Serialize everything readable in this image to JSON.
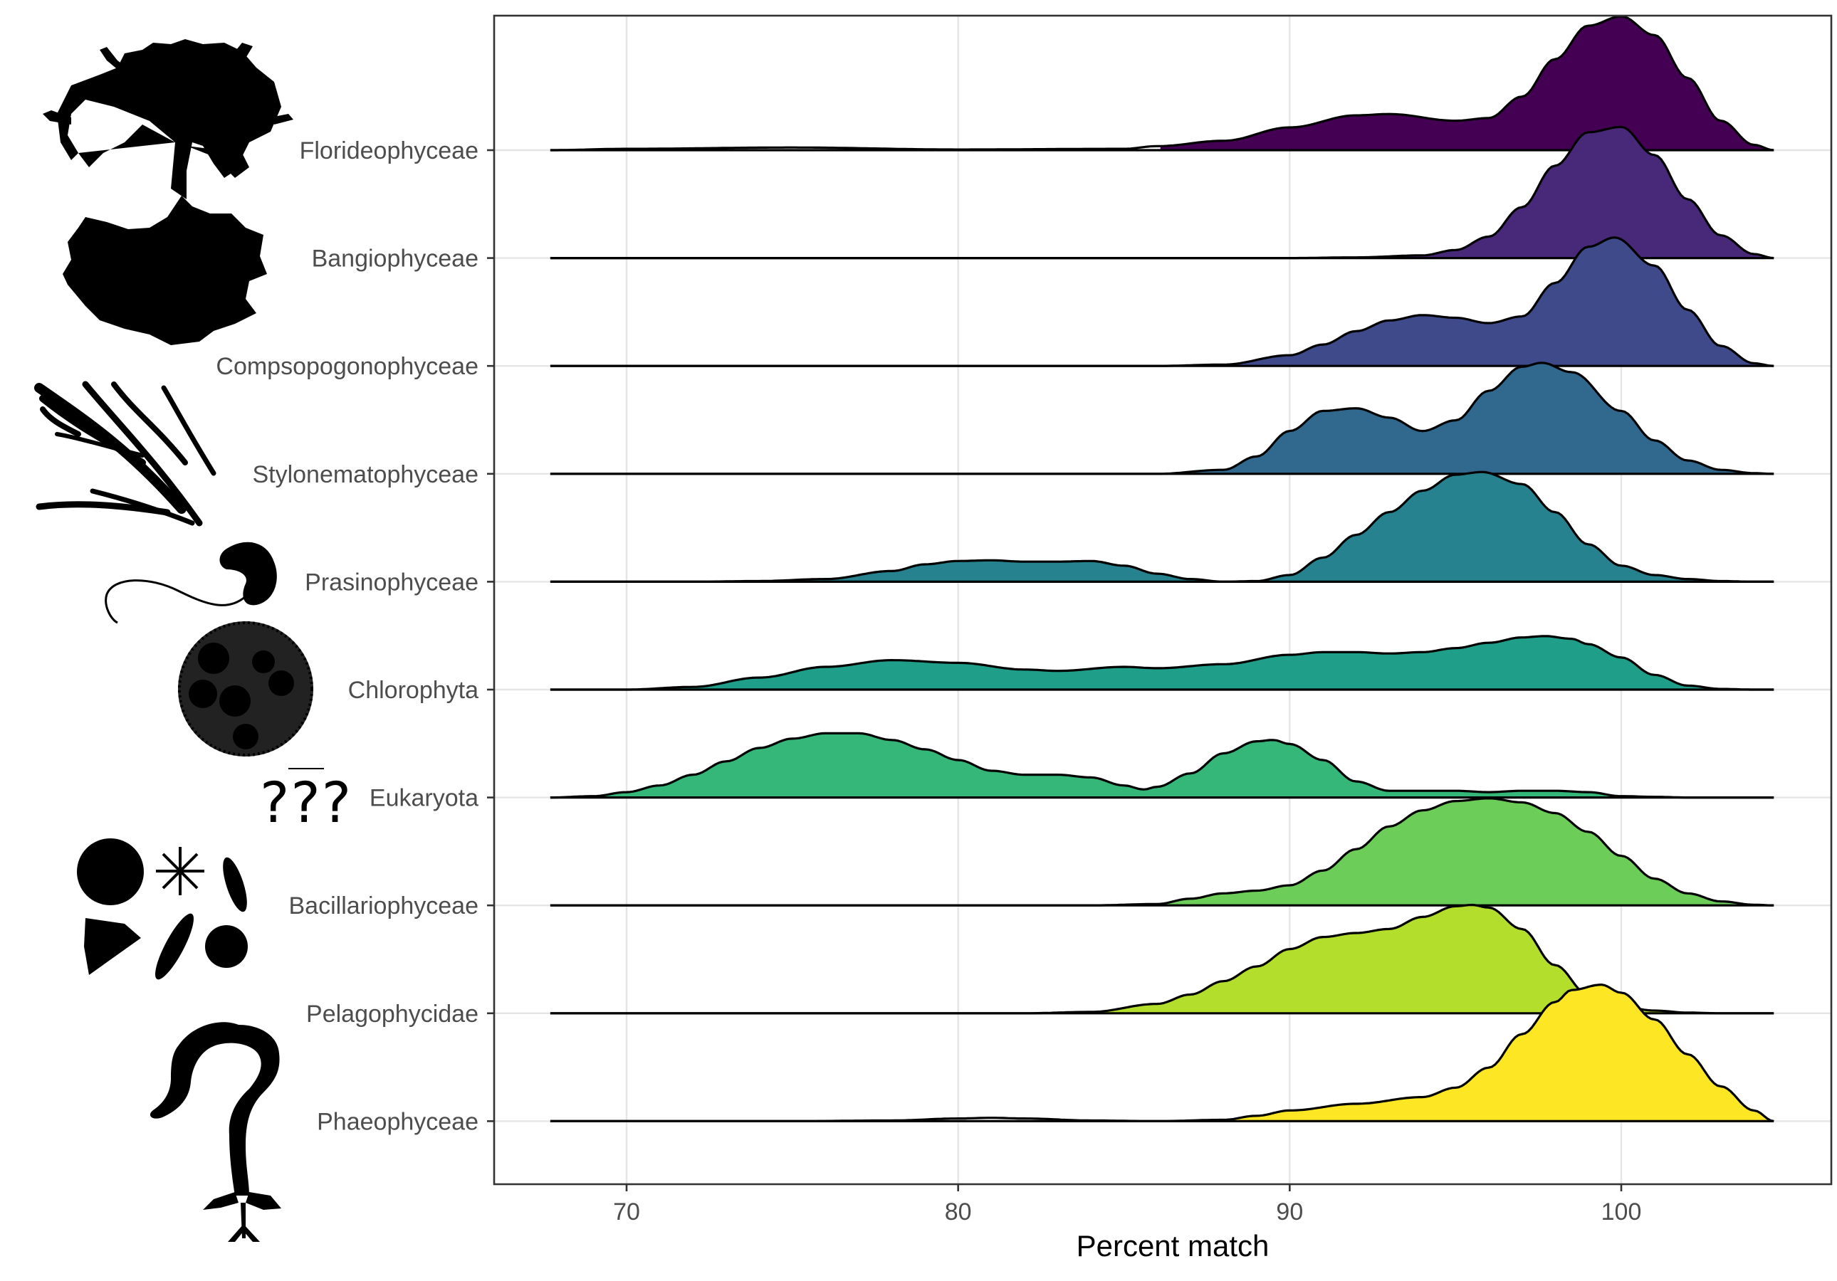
{
  "chart_data": {
    "type": "ridgeline",
    "xlabel": "Percent match",
    "ylabel": "",
    "xlim": [
      66,
      105
    ],
    "x_ticks": [
      70,
      80,
      90,
      100
    ],
    "x_support": [
      67.7,
      104.6
    ],
    "grid": true,
    "legend": "none",
    "categories": [
      "Florideophyceae",
      "Bangiophyceae",
      "Compsopogonophyceae",
      "Stylonematophyceae",
      "Prasinophyceae",
      "Chlorophyta",
      "Eukaryota",
      "Bacillariophyceae",
      "Pelagophycidae",
      "Phaeophyceae"
    ],
    "series": [
      {
        "name": "Florideophyceae",
        "color": "#440154",
        "fill_from": 86,
        "x": [
          67.7,
          70,
          75,
          80,
          85,
          86,
          88,
          90,
          92,
          93,
          95,
          96,
          97,
          98,
          99,
          100,
          101,
          102,
          103,
          104,
          104.6
        ],
        "y": [
          0.0,
          0.01,
          0.02,
          0.005,
          0.01,
          0.03,
          0.07,
          0.17,
          0.26,
          0.27,
          0.22,
          0.24,
          0.4,
          0.68,
          0.93,
          1.0,
          0.86,
          0.54,
          0.22,
          0.04,
          0.0
        ]
      },
      {
        "name": "Bangiophyceae",
        "color": "#482878",
        "fill_from": 92,
        "x": [
          67.7,
          90,
          92,
          94,
          95,
          96,
          97,
          98,
          99,
          100,
          101,
          102,
          103,
          104,
          104.6
        ],
        "y": [
          0.0,
          0.0,
          0.005,
          0.02,
          0.06,
          0.16,
          0.38,
          0.69,
          0.94,
          0.98,
          0.77,
          0.44,
          0.17,
          0.03,
          0.0
        ]
      },
      {
        "name": "Compsopogonophyceae",
        "color": "#3E4A89",
        "fill_from": 88,
        "x": [
          67.7,
          86,
          88,
          90,
          91,
          92,
          93,
          94,
          95,
          96,
          97,
          98,
          99,
          99.8,
          101,
          102,
          103,
          104,
          104.6
        ],
        "y": [
          0.0,
          0.0,
          0.01,
          0.08,
          0.16,
          0.26,
          0.34,
          0.38,
          0.36,
          0.32,
          0.37,
          0.62,
          0.89,
          0.96,
          0.75,
          0.42,
          0.15,
          0.02,
          0.0
        ]
      },
      {
        "name": "Stylonematophyceae",
        "color": "#31688E",
        "fill_from": 87,
        "x": [
          67.7,
          86,
          88,
          89,
          90,
          91,
          92,
          93,
          94,
          95,
          96,
          97,
          97.6,
          98.5,
          100,
          101,
          102,
          103,
          104,
          104.6
        ],
        "y": [
          0.0,
          0.0,
          0.03,
          0.13,
          0.32,
          0.47,
          0.49,
          0.42,
          0.32,
          0.4,
          0.62,
          0.8,
          0.83,
          0.76,
          0.47,
          0.25,
          0.1,
          0.03,
          0.005,
          0.0
        ]
      },
      {
        "name": "Prasinophyceae",
        "color": "#26828E",
        "fill_from": 72,
        "x": [
          67.7,
          72,
          74,
          76,
          78,
          79,
          80,
          81,
          82,
          83,
          84,
          85,
          86,
          87,
          88,
          89,
          90,
          91,
          92,
          93,
          94,
          95,
          95.8,
          97,
          98,
          99,
          100,
          101,
          102,
          103,
          104,
          104.6
        ],
        "y": [
          0.0,
          0.0,
          0.005,
          0.02,
          0.08,
          0.13,
          0.155,
          0.16,
          0.15,
          0.15,
          0.155,
          0.12,
          0.06,
          0.02,
          0.0,
          0.005,
          0.05,
          0.18,
          0.35,
          0.52,
          0.68,
          0.8,
          0.82,
          0.73,
          0.52,
          0.28,
          0.12,
          0.05,
          0.02,
          0.005,
          0.0,
          0.0
        ]
      },
      {
        "name": "Chlorophyta",
        "color": "#1F9E89",
        "fill_from": 70,
        "x": [
          67.7,
          70,
          72,
          74,
          76,
          78,
          80,
          82,
          83,
          85,
          86,
          88,
          90,
          91,
          92,
          93,
          94,
          95,
          96,
          97,
          97.7,
          98.5,
          99,
          100,
          101,
          102,
          103,
          104,
          104.6
        ],
        "y": [
          0.0,
          0.0,
          0.02,
          0.09,
          0.17,
          0.22,
          0.2,
          0.15,
          0.14,
          0.17,
          0.16,
          0.19,
          0.26,
          0.28,
          0.28,
          0.27,
          0.28,
          0.31,
          0.35,
          0.39,
          0.4,
          0.38,
          0.34,
          0.24,
          0.11,
          0.03,
          0.005,
          0.0,
          0.0
        ]
      },
      {
        "name": "Eukaryota",
        "color": "#35B779",
        "fill_from": 67.7,
        "x": [
          67.7,
          69,
          70,
          71,
          72,
          73,
          74,
          75,
          76,
          77,
          78,
          79,
          80,
          81,
          82,
          83,
          84,
          85,
          85.6,
          86,
          87,
          88,
          89,
          89.5,
          90,
          91,
          92,
          93,
          94,
          95,
          96,
          97,
          98,
          99,
          100,
          101,
          102,
          103,
          104,
          104.6
        ],
        "y": [
          0.0,
          0.01,
          0.04,
          0.09,
          0.17,
          0.27,
          0.37,
          0.44,
          0.48,
          0.48,
          0.43,
          0.36,
          0.28,
          0.2,
          0.17,
          0.17,
          0.15,
          0.09,
          0.06,
          0.08,
          0.18,
          0.33,
          0.42,
          0.43,
          0.4,
          0.28,
          0.12,
          0.05,
          0.05,
          0.05,
          0.04,
          0.05,
          0.05,
          0.04,
          0.01,
          0.005,
          0.0,
          0.0,
          0.0,
          0.0
        ]
      },
      {
        "name": "Bacillariophyceae",
        "color": "#6DCD59",
        "fill_from": 85,
        "x": [
          67.7,
          84,
          86,
          87,
          88,
          89,
          90,
          91,
          92,
          93,
          94,
          95,
          96,
          97,
          98,
          99,
          100,
          101,
          102,
          103,
          104,
          104.6
        ],
        "y": [
          0.0,
          0.0,
          0.01,
          0.05,
          0.09,
          0.11,
          0.15,
          0.26,
          0.42,
          0.59,
          0.71,
          0.78,
          0.8,
          0.77,
          0.69,
          0.55,
          0.37,
          0.2,
          0.09,
          0.03,
          0.005,
          0.0
        ]
      },
      {
        "name": "Pelagophycidae",
        "color": "#B4DE2C",
        "fill_from": 84,
        "x": [
          67.7,
          82,
          84,
          86,
          87,
          88,
          89,
          90,
          91,
          92,
          93,
          94,
          95,
          95.5,
          96,
          97,
          98,
          99,
          100,
          101,
          102,
          103,
          104,
          104.6
        ],
        "y": [
          0.0,
          0.0,
          0.01,
          0.07,
          0.14,
          0.24,
          0.35,
          0.48,
          0.57,
          0.6,
          0.63,
          0.72,
          0.8,
          0.81,
          0.79,
          0.63,
          0.36,
          0.14,
          0.05,
          0.02,
          0.005,
          0.0,
          0.0,
          0.0
        ]
      },
      {
        "name": "Phaeophyceae",
        "color": "#FDE725",
        "fill_from": 88,
        "x": [
          67.7,
          75,
          78,
          80,
          81,
          82,
          84,
          86,
          88,
          89,
          90,
          92,
          94,
          95,
          96,
          97,
          98,
          98.5,
          99.4,
          100,
          101,
          102,
          103,
          104,
          104.6
        ],
        "y": [
          0.0,
          0.0,
          0.005,
          0.02,
          0.025,
          0.02,
          0.005,
          0.0,
          0.01,
          0.04,
          0.08,
          0.13,
          0.18,
          0.25,
          0.4,
          0.65,
          0.89,
          0.98,
          1.02,
          0.96,
          0.76,
          0.5,
          0.26,
          0.08,
          0.0
        ]
      }
    ]
  },
  "annotations": {
    "unknown_marker": "???"
  },
  "icons": [
    "red-alga-tree-silhouette",
    "red-alga-crust-silhouette",
    "filamentous-alga-silhouette",
    "flagellate-cell-silhouette",
    "volvox-colony-silhouette",
    "diatoms-silhouette",
    "kelp-silhouette"
  ]
}
